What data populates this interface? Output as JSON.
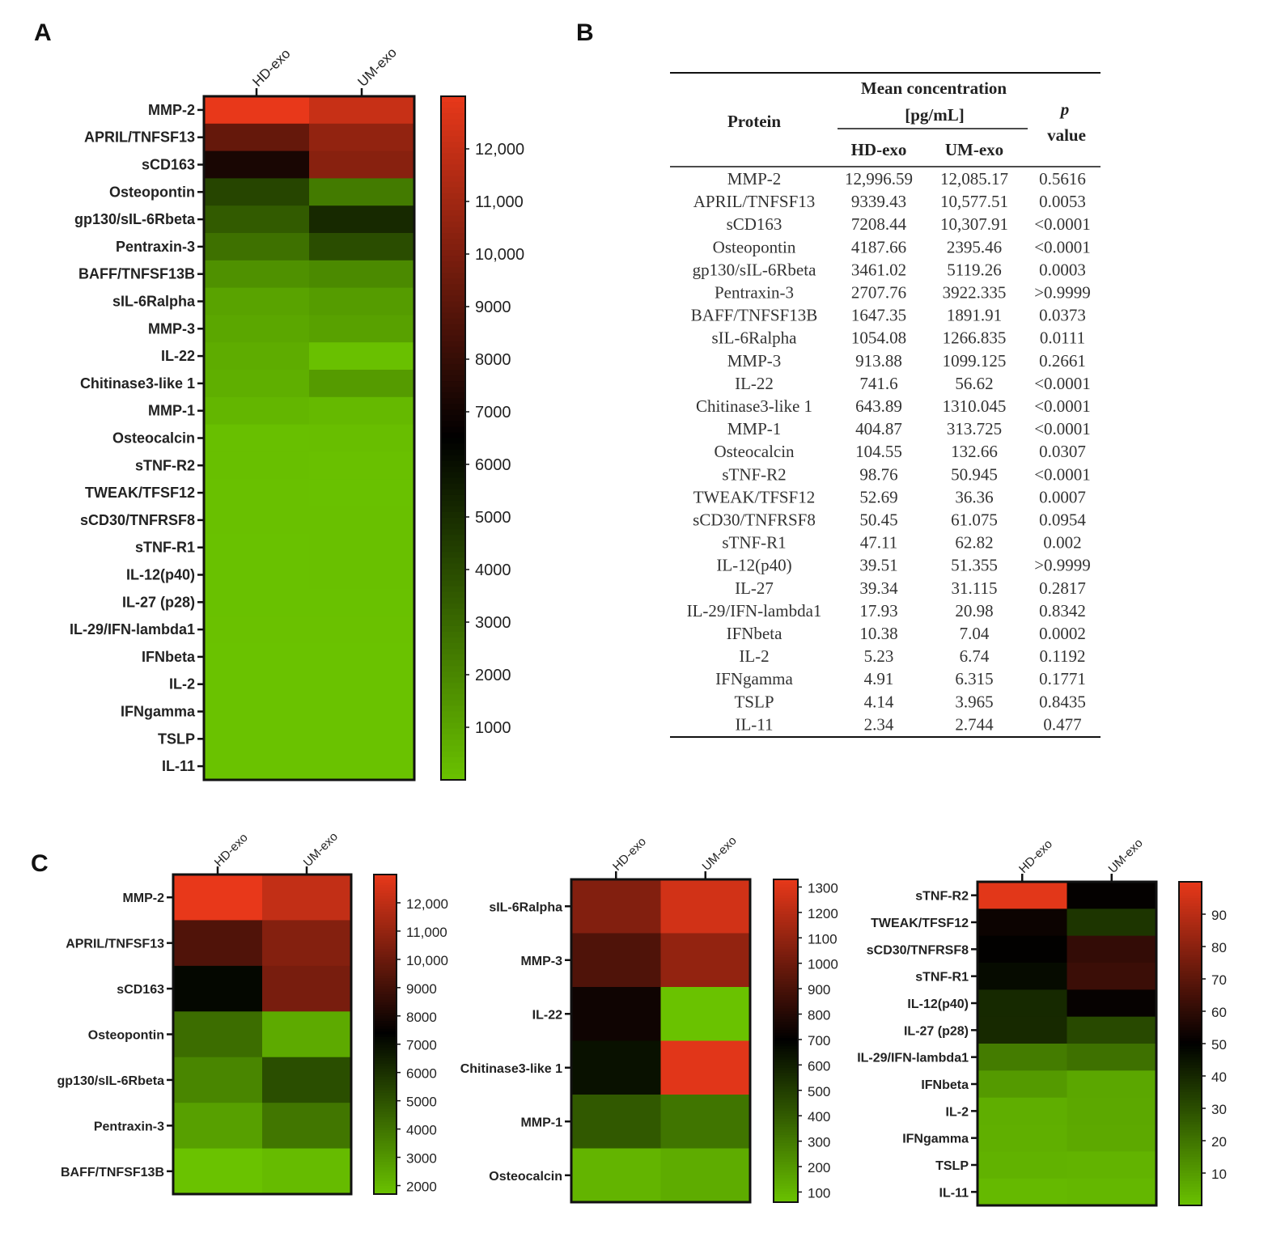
{
  "colors": {
    "low": "#6ac200",
    "mid": "#000000",
    "high": "#e8381a",
    "dark_green": "#0e3a0b"
  },
  "panels": {
    "a": "A",
    "b": "B",
    "c": "C"
  },
  "chart_data": [
    {
      "id": "A",
      "type": "heatmap",
      "columns": [
        "HD-exo",
        "UM-exo"
      ],
      "rows": [
        "MMP-2",
        "APRIL/TNFSF13",
        "sCD163",
        "Osteopontin",
        "gp130/sIL-6Rbeta",
        "Pentraxin-3",
        "BAFF/TNFSF13B",
        "sIL-6Ralpha",
        "MMP-3",
        "IL-22",
        "Chitinase3-like 1",
        "MMP-1",
        "Osteocalcin",
        "sTNF-R2",
        "TWEAK/TFSF12",
        "sCD30/TNFRSF8",
        "sTNF-R1",
        "IL-12(p40)",
        "IL-27 (p28)",
        "IL-29/IFN-lambda1",
        "IFNbeta",
        "IL-2",
        "IFNgamma",
        "TSLP",
        "IL-11"
      ],
      "values": [
        [
          12996.59,
          12085.17
        ],
        [
          9339.43,
          10577.51
        ],
        [
          7208.44,
          10307.91
        ],
        [
          4187.66,
          2395.46
        ],
        [
          3461.02,
          5119.26
        ],
        [
          2707.76,
          3922.335
        ],
        [
          1647.35,
          1891.91
        ],
        [
          1054.08,
          1266.835
        ],
        [
          913.88,
          1099.125
        ],
        [
          741.6,
          56.62
        ],
        [
          643.89,
          1310.045
        ],
        [
          404.87,
          313.725
        ],
        [
          104.55,
          132.66
        ],
        [
          98.76,
          50.945
        ],
        [
          52.69,
          36.36
        ],
        [
          50.45,
          61.075
        ],
        [
          47.11,
          62.82
        ],
        [
          39.51,
          51.355
        ],
        [
          39.34,
          31.115
        ],
        [
          17.93,
          20.98
        ],
        [
          10.38,
          7.04
        ],
        [
          5.23,
          6.74
        ],
        [
          4.91,
          6.315
        ],
        [
          4.14,
          3.965
        ],
        [
          2.34,
          2.744
        ]
      ],
      "colorbar": {
        "min": 0,
        "max": 13000,
        "mid": 6500,
        "ticks": [
          12000,
          11000,
          10000,
          9000,
          8000,
          7000,
          6000,
          5000,
          4000,
          3000,
          2000,
          1000
        ],
        "tick_labels": [
          "12,000",
          "11,000",
          "10,000",
          "9000",
          "8000",
          "7000",
          "6000",
          "5000",
          "4000",
          "3000",
          "2000",
          "1000"
        ]
      }
    },
    {
      "id": "C1",
      "type": "heatmap",
      "columns": [
        "HD-exo",
        "UM-exo"
      ],
      "rows": [
        "MMP-2",
        "APRIL/TNFSF13",
        "sCD163",
        "Osteopontin",
        "gp130/sIL-6Rbeta",
        "Pentraxin-3",
        "BAFF/TNFSF13B"
      ],
      "values": [
        [
          12996.59,
          12085.17
        ],
        [
          9339.43,
          10577.51
        ],
        [
          7208.44,
          10307.91
        ],
        [
          4187.66,
          2395.46
        ],
        [
          3461.02,
          5119.26
        ],
        [
          2707.76,
          3922.335
        ],
        [
          1647.35,
          1891.91
        ]
      ],
      "colorbar": {
        "min": 1700,
        "max": 13000,
        "mid": 7400,
        "ticks": [
          12000,
          11000,
          10000,
          9000,
          8000,
          7000,
          6000,
          5000,
          4000,
          3000,
          2000
        ],
        "tick_labels": [
          "12,000",
          "11,000",
          "10,000",
          "9000",
          "8000",
          "7000",
          "6000",
          "5000",
          "4000",
          "3000",
          "2000"
        ]
      }
    },
    {
      "id": "C2",
      "type": "heatmap",
      "columns": [
        "HD-exo",
        "UM-exo"
      ],
      "rows": [
        "sIL-6Ralpha",
        "MMP-3",
        "IL-22",
        "Chitinase3-like 1",
        "MMP-1",
        "Osteocalcin"
      ],
      "values": [
        [
          1054.08,
          1266.835
        ],
        [
          913.88,
          1099.125
        ],
        [
          741.6,
          56.62
        ],
        [
          643.89,
          1310.045
        ],
        [
          404.87,
          313.725
        ],
        [
          104.55,
          132.66
        ]
      ],
      "colorbar": {
        "min": 60,
        "max": 1330,
        "mid": 700,
        "ticks": [
          1300,
          1200,
          1100,
          1000,
          900,
          800,
          700,
          600,
          500,
          400,
          300,
          200,
          100
        ],
        "tick_labels": [
          "1300",
          "1200",
          "1100",
          "1000",
          "900",
          "800",
          "700",
          "600",
          "500",
          "400",
          "300",
          "200",
          "100"
        ]
      }
    },
    {
      "id": "C3",
      "type": "heatmap",
      "columns": [
        "HD-exo",
        "UM-exo"
      ],
      "rows": [
        "sTNF-R2",
        "TWEAK/TFSF12",
        "sCD30/TNFRSF8",
        "sTNF-R1",
        "IL-12(p40)",
        "IL-27 (p28)",
        "IL-29/IFN-lambda1",
        "IFNbeta",
        "IL-2",
        "IFNgamma",
        "TSLP",
        "IL-11"
      ],
      "values": [
        [
          98.76,
          50.945
        ],
        [
          52.69,
          36.36
        ],
        [
          50.45,
          61.075
        ],
        [
          47.11,
          62.82
        ],
        [
          39.51,
          51.355
        ],
        [
          39.34,
          31.115
        ],
        [
          17.93,
          20.98
        ],
        [
          10.38,
          7.04
        ],
        [
          5.23,
          6.74
        ],
        [
          4.91,
          6.315
        ],
        [
          4.14,
          3.965
        ],
        [
          2.34,
          2.744
        ]
      ],
      "colorbar": {
        "min": 0,
        "max": 100,
        "mid": 50,
        "ticks": [
          90,
          80,
          70,
          60,
          50,
          40,
          30,
          20,
          10
        ],
        "tick_labels": [
          "90",
          "80",
          "70",
          "60",
          "50",
          "40",
          "30",
          "20",
          "10"
        ]
      }
    },
    {
      "id": "B",
      "type": "table",
      "headers": {
        "protein": "Protein",
        "mean_line1": "Mean concentration",
        "mean_line2": "[pg/mL]",
        "hd": "HD-exo",
        "um": "UM-exo",
        "p_italic": "p",
        "p_value": "value"
      },
      "rows": [
        [
          "MMP-2",
          "12,996.59",
          "12,085.17",
          "0.5616"
        ],
        [
          "APRIL/TNFSF13",
          "9339.43",
          "10,577.51",
          "0.0053"
        ],
        [
          "sCD163",
          "7208.44",
          "10,307.91",
          "<0.0001"
        ],
        [
          "Osteopontin",
          "4187.66",
          "2395.46",
          "<0.0001"
        ],
        [
          "gp130/sIL-6Rbeta",
          "3461.02",
          "5119.26",
          "0.0003"
        ],
        [
          "Pentraxin-3",
          "2707.76",
          "3922.335",
          ">0.9999"
        ],
        [
          "BAFF/TNFSF13B",
          "1647.35",
          "1891.91",
          "0.0373"
        ],
        [
          "sIL-6Ralpha",
          "1054.08",
          "1266.835",
          "0.0111"
        ],
        [
          "MMP-3",
          "913.88",
          "1099.125",
          "0.2661"
        ],
        [
          "IL-22",
          "741.6",
          "56.62",
          "<0.0001"
        ],
        [
          "Chitinase3-like 1",
          "643.89",
          "1310.045",
          "<0.0001"
        ],
        [
          "MMP-1",
          "404.87",
          "313.725",
          "<0.0001"
        ],
        [
          "Osteocalcin",
          "104.55",
          "132.66",
          "0.0307"
        ],
        [
          "sTNF-R2",
          "98.76",
          "50.945",
          "<0.0001"
        ],
        [
          "TWEAK/TFSF12",
          "52.69",
          "36.36",
          "0.0007"
        ],
        [
          "sCD30/TNFRSF8",
          "50.45",
          "61.075",
          "0.0954"
        ],
        [
          "sTNF-R1",
          "47.11",
          "62.82",
          "0.002"
        ],
        [
          "IL-12(p40)",
          "39.51",
          "51.355",
          ">0.9999"
        ],
        [
          "IL-27",
          "39.34",
          "31.115",
          "0.2817"
        ],
        [
          "IL-29/IFN-lambda1",
          "17.93",
          "20.98",
          "0.8342"
        ],
        [
          "IFNbeta",
          "10.38",
          "7.04",
          "0.0002"
        ],
        [
          "IL-2",
          "5.23",
          "6.74",
          "0.1192"
        ],
        [
          "IFNgamma",
          "4.91",
          "6.315",
          "0.1771"
        ],
        [
          "TSLP",
          "4.14",
          "3.965",
          "0.8435"
        ],
        [
          "IL-11",
          "2.34",
          "2.744",
          "0.477"
        ]
      ]
    }
  ]
}
